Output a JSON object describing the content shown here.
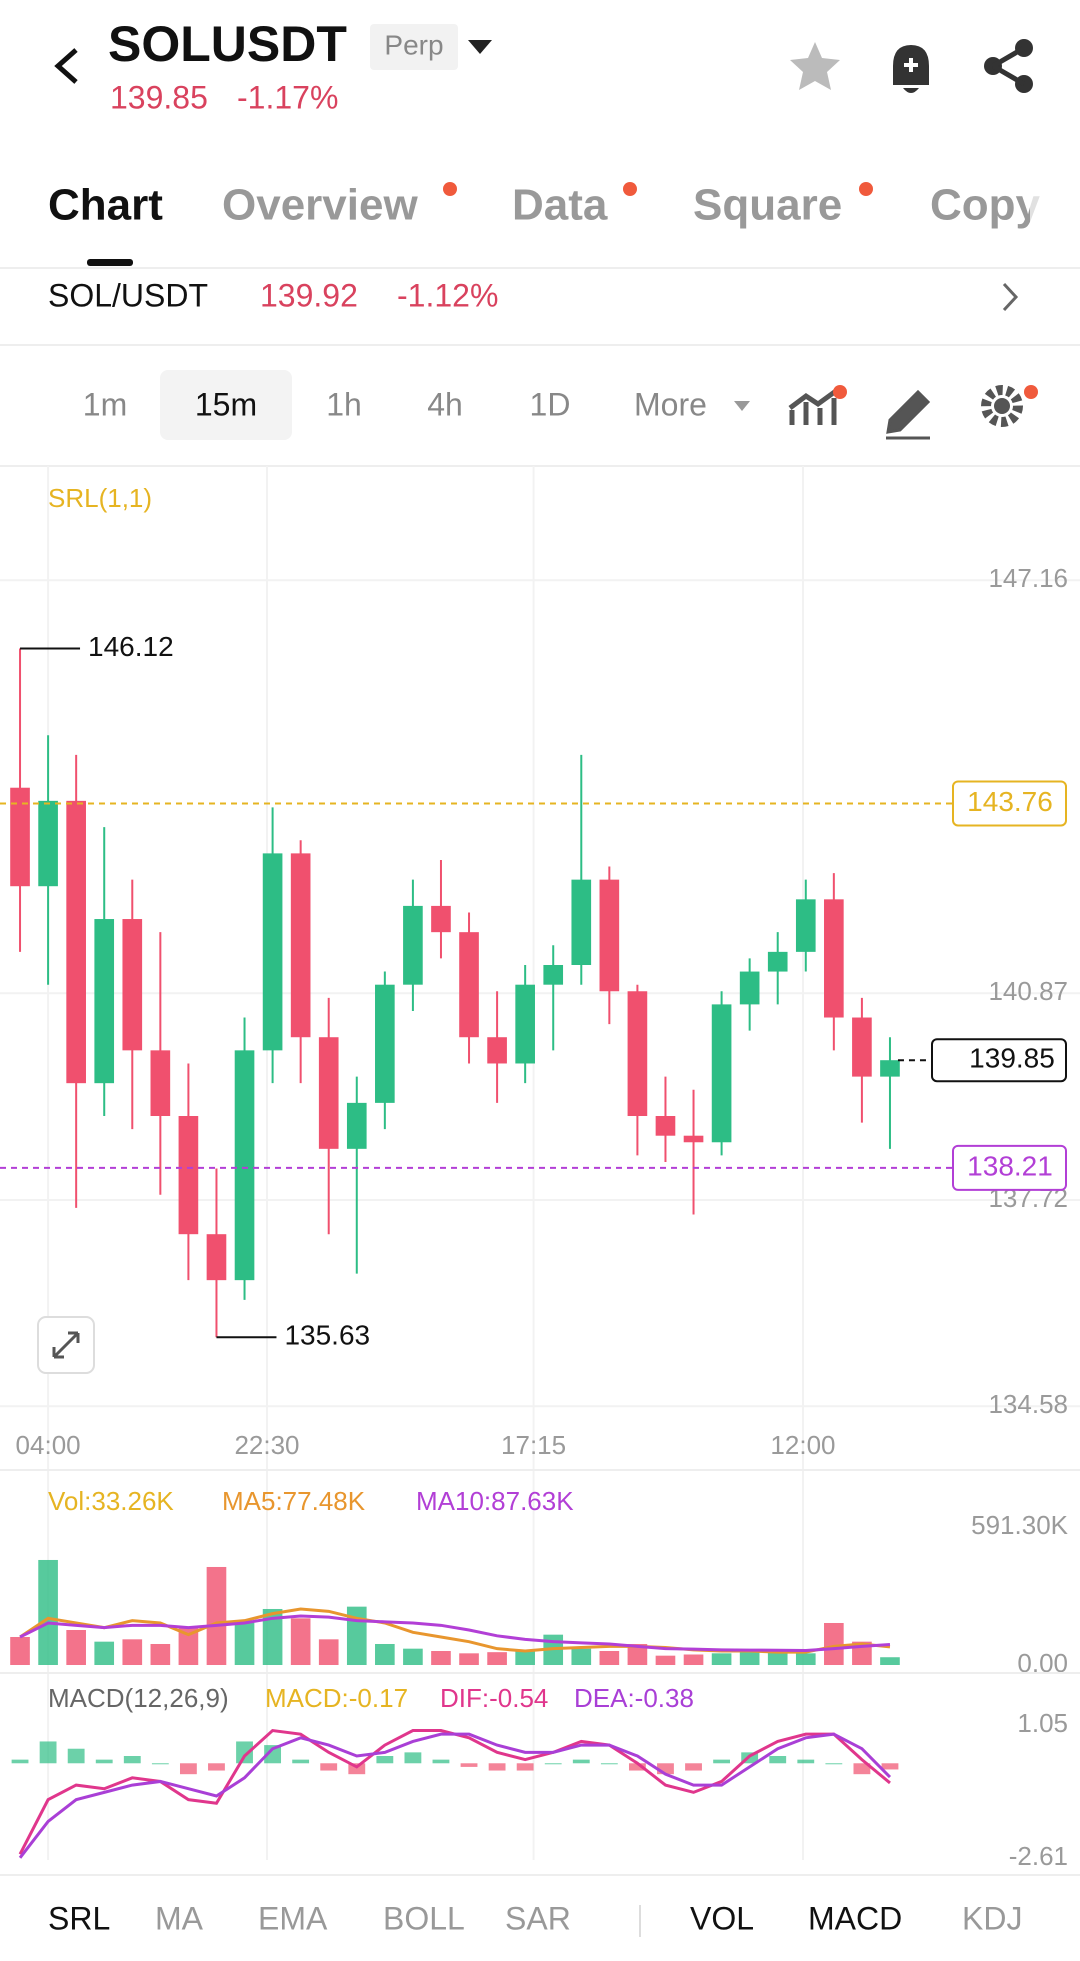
{
  "header": {
    "symbol": "SOLUSDT",
    "badge": "Perp",
    "price": "139.85",
    "change": "-1.17%"
  },
  "tabs": [
    "Chart",
    "Overview",
    "Data",
    "Square",
    "Copy"
  ],
  "ticker": {
    "pair": "SOL/USDT",
    "price": "139.92",
    "change": "-1.12%"
  },
  "intervals": [
    "1m",
    "15m",
    "1h",
    "4h",
    "1D",
    "More"
  ],
  "indicator_tabs": [
    "SRL",
    "MA",
    "EMA",
    "BOLL",
    "SAR",
    "VOL",
    "MACD",
    "KDJ"
  ],
  "chart_data": {
    "type": "candlestick",
    "indicator": "SRL(1,1)",
    "up_color": "#2dbd85",
    "down_color": "#f0506e",
    "candles": [
      [
        144,
        146.12,
        141.5,
        142.5
      ],
      [
        142.5,
        144.8,
        141,
        143.8
      ],
      [
        143.8,
        144.5,
        137.6,
        139.5
      ],
      [
        139.5,
        143.4,
        139,
        142
      ],
      [
        142,
        142.6,
        138.8,
        140
      ],
      [
        140,
        141.8,
        137.8,
        139
      ],
      [
        139,
        139.8,
        136.5,
        137.2
      ],
      [
        137.2,
        138.2,
        135.63,
        136.5
      ],
      [
        136.5,
        140.5,
        136.2,
        140
      ],
      [
        140,
        143.7,
        139.5,
        143
      ],
      [
        143,
        143.2,
        139.5,
        140.2
      ],
      [
        140.2,
        140.8,
        137.2,
        138.5
      ],
      [
        138.5,
        139.6,
        136.6,
        139.2
      ],
      [
        139.2,
        141.2,
        138.8,
        141
      ],
      [
        141,
        142.6,
        140.6,
        142.2
      ],
      [
        142.2,
        142.9,
        141.4,
        141.8
      ],
      [
        141.8,
        142.1,
        139.8,
        140.2
      ],
      [
        140.2,
        140.9,
        139.2,
        139.8
      ],
      [
        139.8,
        141.3,
        139.5,
        141
      ],
      [
        141,
        141.6,
        140,
        141.3
      ],
      [
        141.3,
        144.5,
        141,
        142.6
      ],
      [
        142.6,
        142.8,
        140.4,
        140.9
      ],
      [
        140.9,
        141,
        138.4,
        139
      ],
      [
        139,
        139.6,
        138.3,
        138.7
      ],
      [
        138.7,
        139.4,
        137.5,
        138.6
      ],
      [
        138.6,
        140.9,
        138.4,
        140.7
      ],
      [
        140.7,
        141.4,
        140.3,
        141.2
      ],
      [
        141.2,
        141.8,
        140.7,
        141.5
      ],
      [
        141.5,
        142.6,
        141.2,
        142.3
      ],
      [
        142.3,
        142.7,
        140,
        140.5
      ],
      [
        140.5,
        140.8,
        138.9,
        139.6
      ],
      [
        139.6,
        140.2,
        138.5,
        139.85
      ]
    ],
    "ylim": [
      134.37,
      148.9
    ],
    "yticks": [
      147.16,
      140.87,
      137.72,
      134.58
    ],
    "xticks": [
      {
        "value": 1,
        "label": "04:00"
      },
      {
        "value": 8.8,
        "label": "22:30"
      },
      {
        "value": 18.3,
        "label": "17:15"
      },
      {
        "value": 27.9,
        "label": "12:00"
      }
    ],
    "srl_high": 143.76,
    "srl_high_color": "#e6b422",
    "srl_low": 138.21,
    "srl_low_color": "#b23fd6",
    "current_price": 139.85,
    "high_marker": 146.12,
    "high_index": 0,
    "low_marker": 135.63,
    "low_index": 7,
    "volume": {
      "label": "Vol:33.26K",
      "ma5_label": "MA5:77.48K",
      "ma10_label": "MA10:87.63K",
      "label_color": "#e6b422",
      "ma5_color": "#e8962e",
      "ma10_color": "#b23fd6",
      "values": [
        120000,
        450000,
        150000,
        100000,
        110000,
        90000,
        160000,
        420000,
        180000,
        240000,
        200000,
        110000,
        250000,
        90000,
        70000,
        60000,
        50000,
        55000,
        60000,
        130000,
        70000,
        60000,
        90000,
        40000,
        45000,
        50000,
        60000,
        55000,
        50000,
        180000,
        100000,
        33260
      ],
      "ma5": [
        120000,
        200000,
        180000,
        160000,
        190000,
        180000,
        130000,
        180000,
        190000,
        220000,
        240000,
        230000,
        200000,
        180000,
        140000,
        120000,
        100000,
        70000,
        60000,
        70000,
        75000,
        80000,
        80000,
        75000,
        65000,
        60000,
        60000,
        55000,
        55000,
        80000,
        90000,
        77480
      ],
      "ma10": [
        120000,
        180000,
        170000,
        160000,
        170000,
        170000,
        160000,
        170000,
        180000,
        200000,
        210000,
        205000,
        190000,
        185000,
        180000,
        170000,
        150000,
        125000,
        110000,
        100000,
        95000,
        90000,
        80000,
        70000,
        68000,
        65000,
        64000,
        63000,
        62000,
        70000,
        80000,
        87630
      ],
      "ylim": [
        0,
        591300
      ],
      "yticks": [
        {
          "value": 591300,
          "label": "591.30K"
        },
        {
          "value": 0,
          "label": "0.00"
        }
      ]
    },
    "macd": {
      "label": "MACD(12,26,9)",
      "macd_label": "MACD:-0.17",
      "dif_label": "DIF:-0.54",
      "dea_label": "DEA:-0.38",
      "macd_color": "#e6b422",
      "dif_color": "#e0368c",
      "dea_color": "#a93fd6",
      "hist": [
        0.1,
        0.6,
        0.4,
        0.1,
        0.2,
        0,
        -0.3,
        -0.2,
        0.6,
        0.5,
        0.1,
        -0.2,
        -0.3,
        0.2,
        0.3,
        0.1,
        -0.1,
        -0.2,
        -0.2,
        0,
        0.1,
        0,
        -0.2,
        -0.3,
        -0.2,
        0.1,
        0.3,
        0.2,
        0.1,
        0,
        -0.3,
        -0.17
      ],
      "dif": [
        -2.5,
        -1.0,
        -0.6,
        -0.7,
        -0.4,
        -0.5,
        -1.0,
        -1.1,
        0.2,
        0.9,
        0.8,
        0.3,
        -0.1,
        0.5,
        0.9,
        0.9,
        0.7,
        0.3,
        0.1,
        0.3,
        0.6,
        0.5,
        0.0,
        -0.6,
        -0.8,
        -0.5,
        0.2,
        0.6,
        0.8,
        0.8,
        0.1,
        -0.54
      ],
      "dea": [
        -2.6,
        -1.6,
        -1.0,
        -0.8,
        -0.6,
        -0.5,
        -0.7,
        -0.9,
        -0.4,
        0.4,
        0.7,
        0.5,
        0.2,
        0.3,
        0.6,
        0.8,
        0.8,
        0.5,
        0.3,
        0.3,
        0.5,
        0.5,
        0.2,
        -0.3,
        -0.6,
        -0.6,
        -0.1,
        0.4,
        0.7,
        0.8,
        0.4,
        -0.38
      ],
      "ylim": [
        -2.99,
        2.29
      ],
      "yticks": [
        1.05,
        -2.61
      ]
    }
  }
}
